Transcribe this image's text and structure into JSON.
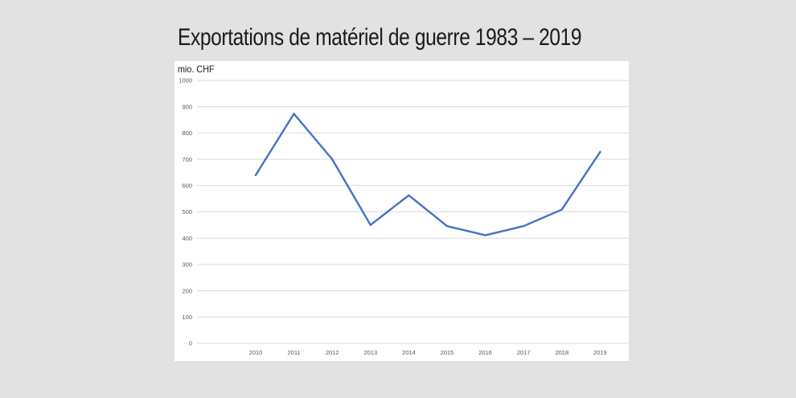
{
  "page": {
    "title": "Exportations de matériel de guerre 1983 – 2019"
  },
  "chart_data": {
    "type": "line",
    "title": "Exportations de matériel de guerre 1983 – 2019",
    "ylabel": "mio. CHF",
    "xlabel": "",
    "categories": [
      "2010",
      "2011",
      "2012",
      "2013",
      "2014",
      "2015",
      "2016",
      "2017",
      "2018",
      "2019"
    ],
    "series": [
      {
        "name": "Exportations",
        "color": "#4472c4",
        "values": [
          640,
          873,
          700,
          450,
          563,
          446,
          411,
          446,
          509,
          728
        ]
      }
    ],
    "ylim": [
      0,
      1000
    ],
    "yticks": [
      0,
      100,
      200,
      300,
      400,
      500,
      600,
      700,
      800,
      900,
      1000
    ],
    "grid": true,
    "legend": "none"
  }
}
